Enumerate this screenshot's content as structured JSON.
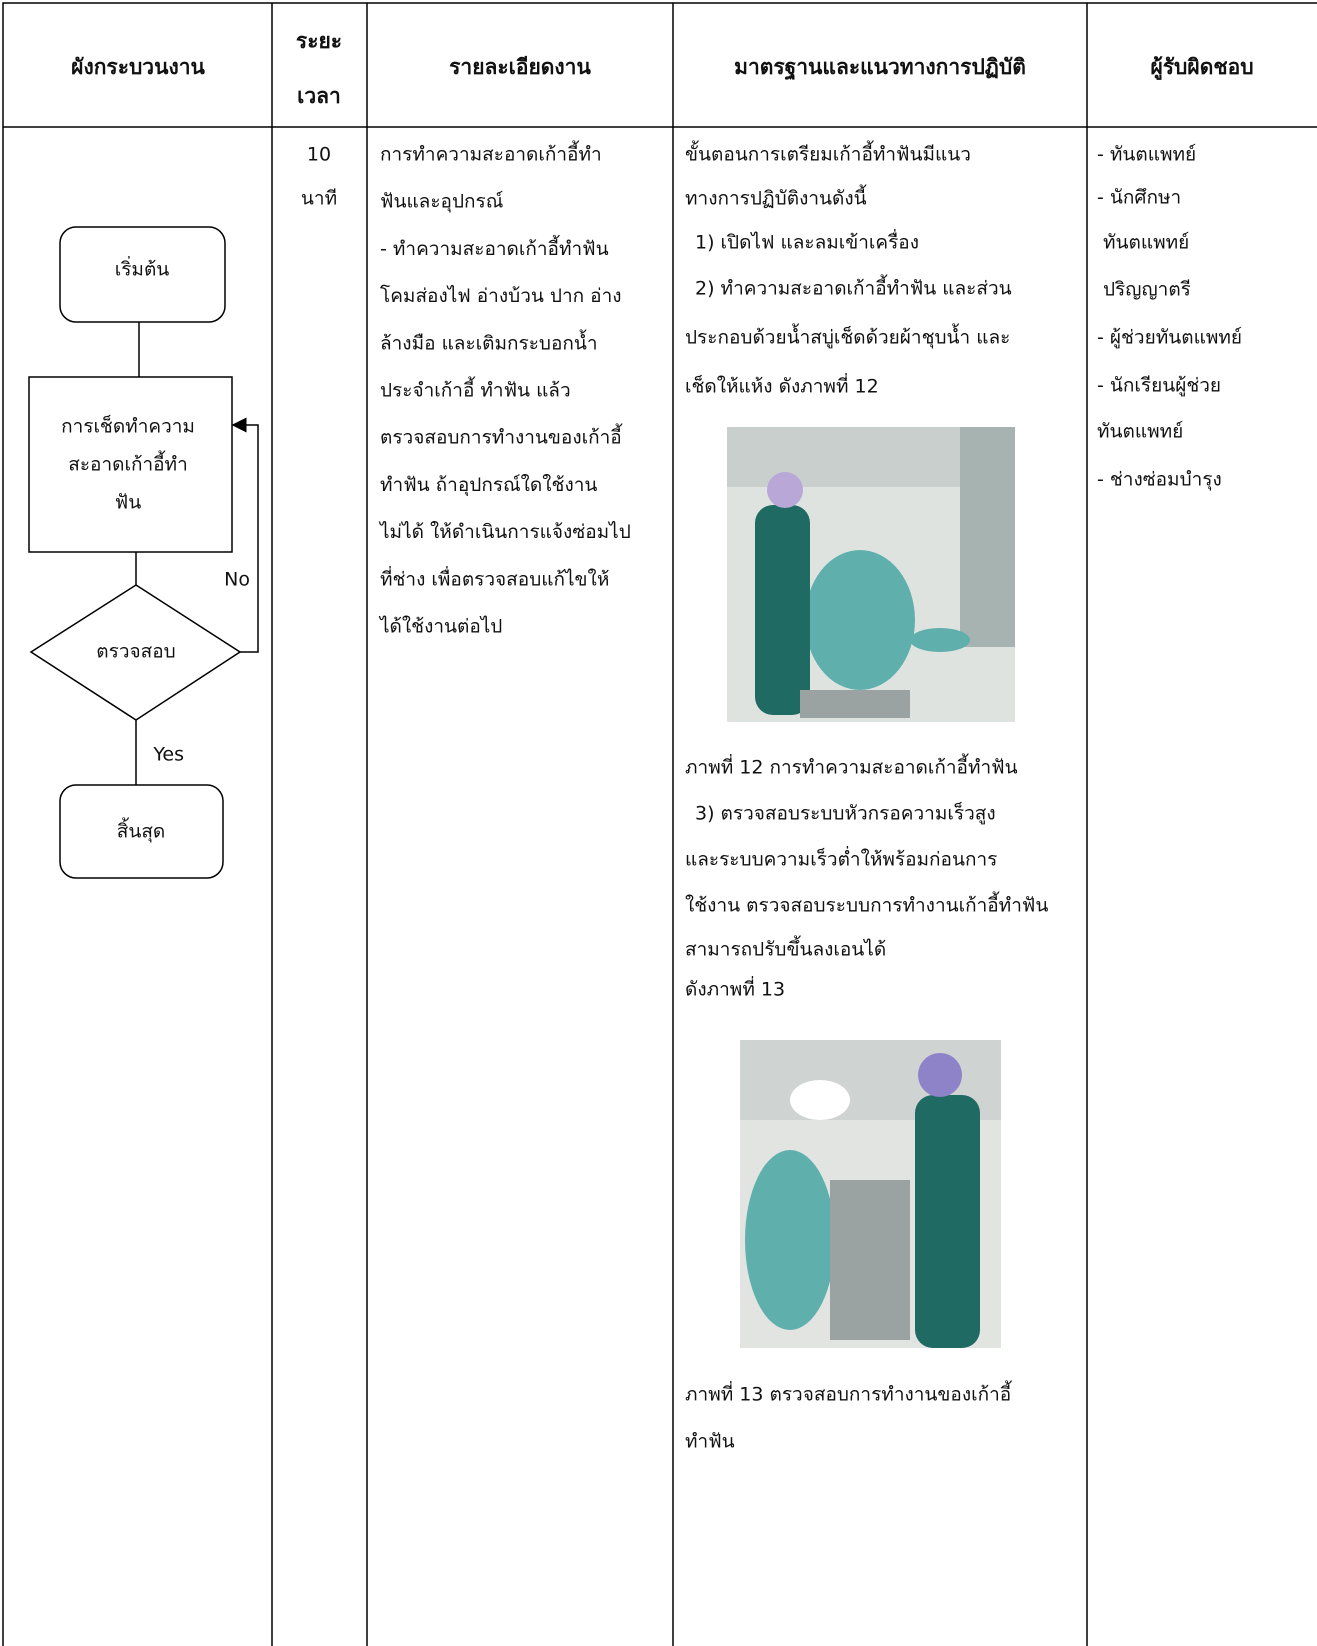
{
  "header": {
    "columns": [
      "ผังกระบวนงาน",
      [
        "ระยะ",
        "เวลา"
      ],
      "รายละเอียดงาน",
      "มาตรฐานและแนวทางการปฏิบัติ",
      "ผู้รับผิดชอบ"
    ]
  },
  "flowchart": {
    "nodes": [
      {
        "label": [
          "เริ่มต้น"
        ]
      },
      {
        "label": [
          "การเช็ดทำความ",
          "สะอาดเก้าอี้ทำ",
          "ฟัน"
        ]
      },
      {
        "label": [
          "ตรวจสอบ"
        ]
      },
      {
        "label": [
          "สิ้นสุด"
        ]
      }
    ],
    "edges": {
      "no": "No",
      "yes": "Yes"
    }
  },
  "time": [
    "10",
    "นาที"
  ],
  "details": [
    "การทำความสะอาดเก้าอี้ทำ",
    "ฟันและอุปกรณ์",
    "- ทำความสะอาดเก้าอี้ทำฟัน",
    "โคมส่องไฟ อ่างบ้วน ปาก อ่าง",
    "ล้างมือ และเติมกระบอกน้ำ",
    "ประจำเก้าอี้ ทำฟัน แล้ว",
    "ตรวจสอบการทำงานของเก้าอี้",
    "ทำฟัน ถ้าอุปกรณ์ใดใช้งาน",
    "ไม่ได้ ให้ดำเนินการแจ้งซ่อมไป",
    "ที่ช่าง เพื่อตรวจสอบแก้ไขให้",
    "ได้ใช้งานต่อไป"
  ],
  "standards": {
    "lines_before": [
      "ขั้นตอนการเตรียมเก้าอี้ทำฟันมีแนว",
      "ทางการปฏิบัติงานดังนี้",
      "1) เปิดไฟ และลมเข้าเครื่อง",
      "2) ทำความสะอาดเก้าอี้ทำฟัน และส่วน",
      "ประกอบด้วยน้ำสบู่เช็ดด้วยผ้าชุบน้ำ และ",
      "เช็ดให้แห้ง ดังภาพที่ 12"
    ],
    "figure_12_caption": "ภาพที่ 12 การทำความสะอาดเก้าอี้ทำฟัน",
    "lines_middle": [
      "3) ตรวจสอบระบบหัวกรอความเร็วสูง",
      "และระบบความเร็วต่ำให้พร้อมก่อนการ",
      "ใช้งาน ตรวจสอบระบบการทำงานเก้าอี้ทำฟัน",
      "สามารถปรับขึ้นลงเอนได้",
      "ดังภาพที่ 13"
    ],
    "figure_13_caption": [
      "ภาพที่ 13 ตรวจสอบการทำงานของเก้าอี้",
      "ทำฟัน"
    ]
  },
  "responsible": [
    "- ทันตแพทย์",
    "- นักศึกษา",
    "ทันตแพทย์",
    "ปริญญาตรี",
    "- ผู้ช่วยทันตแพทย์",
    "- นักเรียนผู้ช่วย",
    "ทันตแพทย์",
    "- ช่างซ่อมบำรุง"
  ]
}
